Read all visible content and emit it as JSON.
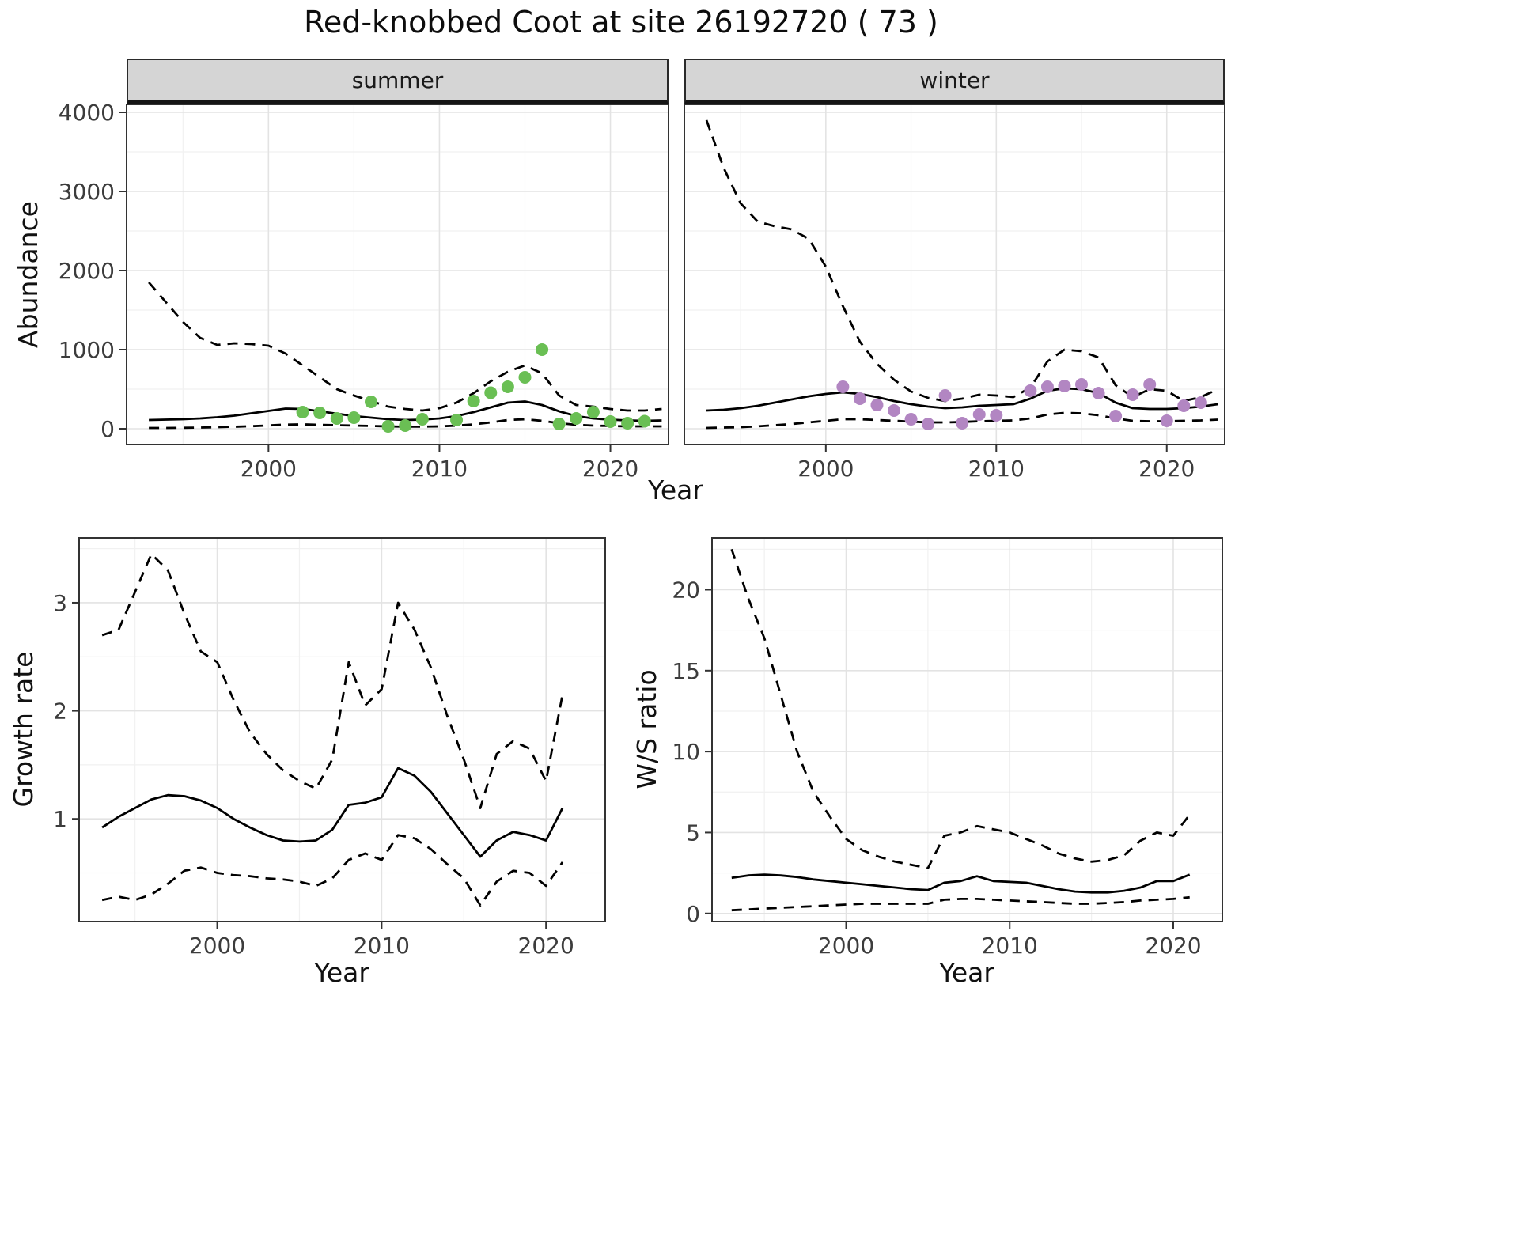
{
  "title": "Red-knobbed Coot at site 26192720 ( 73 )",
  "labels": {
    "abundance_axis": "Abundance",
    "year_axis_top": "Year",
    "growth_axis": "Growth rate",
    "ratio_axis": "W/S ratio",
    "year_axis_growth": "Year",
    "year_axis_ratio": "Year"
  },
  "theme": {
    "line_color": "#000000",
    "panel_border": "#333333",
    "grid_major": "#e3e3e3",
    "grid_minor": "#f1f1f1",
    "tick_color": "#333333",
    "tick_label_color": "#3c3c3c",
    "strip_background": "#d5d5d5",
    "summer_point_color": "#6abf54",
    "winter_point_color": "#b286c2"
  },
  "chart_data": [
    {
      "id": "abundance-summer",
      "type": "line",
      "facet": "summer",
      "xlabel": "Year",
      "ylabel": "Abundance",
      "xlim": [
        1991.7,
        2023.4
      ],
      "ylim": [
        -200,
        4100
      ],
      "xticks": [
        2000,
        2010,
        2020
      ],
      "yticks": [
        0,
        1000,
        2000,
        3000,
        4000
      ],
      "x": [
        1993,
        1994,
        1995,
        1996,
        1997,
        1998,
        1999,
        2000,
        2001,
        2002,
        2003,
        2004,
        2005,
        2006,
        2007,
        2008,
        2009,
        2010,
        2011,
        2012,
        2013,
        2014,
        2015,
        2016,
        2017,
        2018,
        2019,
        2020,
        2021,
        2022,
        2023
      ],
      "series": [
        {
          "name": "upper-credible-interval",
          "style": "dashed",
          "y": [
            1850,
            1600,
            1350,
            1150,
            1060,
            1080,
            1070,
            1050,
            950,
            800,
            650,
            500,
            420,
            350,
            280,
            250,
            230,
            260,
            330,
            450,
            600,
            720,
            800,
            700,
            420,
            300,
            280,
            250,
            230,
            230,
            250
          ]
        },
        {
          "name": "modelled-estimate",
          "style": "solid",
          "y": [
            110,
            115,
            120,
            130,
            145,
            165,
            195,
            225,
            255,
            250,
            220,
            190,
            160,
            140,
            120,
            110,
            115,
            130,
            160,
            210,
            270,
            330,
            345,
            300,
            220,
            160,
            130,
            115,
            105,
            100,
            105
          ]
        },
        {
          "name": "lower-credible-interval",
          "style": "dashed",
          "y": [
            10,
            10,
            12,
            15,
            20,
            25,
            32,
            42,
            52,
            55,
            50,
            45,
            40,
            35,
            30,
            26,
            26,
            30,
            40,
            55,
            80,
            110,
            120,
            100,
            70,
            50,
            40,
            35,
            30,
            30,
            30
          ]
        },
        {
          "name": "observed-counts",
          "style": "points",
          "color": "#6abf54",
          "x": [
            2002,
            2003,
            2004,
            2005,
            2006,
            2007,
            2008,
            2009,
            2011,
            2012,
            2013,
            2014,
            2015,
            2016,
            2017,
            2018,
            2019,
            2020,
            2021,
            2022
          ],
          "y": [
            210,
            200,
            130,
            140,
            340,
            30,
            40,
            120,
            110,
            350,
            455,
            530,
            650,
            1000,
            60,
            130,
            210,
            90,
            70,
            95
          ]
        }
      ]
    },
    {
      "id": "abundance-winter",
      "type": "line",
      "facet": "winter",
      "xlabel": "Year",
      "ylabel": "Abundance",
      "xlim": [
        1991.7,
        2023.4
      ],
      "ylim": [
        -200,
        4100
      ],
      "xticks": [
        2000,
        2010,
        2020
      ],
      "yticks": [
        0,
        1000,
        2000,
        3000,
        4000
      ],
      "x": [
        1993,
        1994,
        1995,
        1996,
        1997,
        1998,
        1999,
        2000,
        2001,
        2002,
        2003,
        2004,
        2005,
        2006,
        2007,
        2008,
        2009,
        2010,
        2011,
        2012,
        2013,
        2014,
        2015,
        2016,
        2017,
        2018,
        2019,
        2020,
        2021,
        2022,
        2023
      ],
      "series": [
        {
          "name": "upper-credible-interval",
          "style": "dashed",
          "y": [
            3900,
            3300,
            2850,
            2620,
            2560,
            2520,
            2400,
            2050,
            1550,
            1100,
            820,
            620,
            470,
            390,
            350,
            380,
            430,
            420,
            400,
            520,
            850,
            1000,
            980,
            900,
            550,
            400,
            500,
            480,
            350,
            400,
            500
          ]
        },
        {
          "name": "modelled-estimate",
          "style": "solid",
          "y": [
            230,
            240,
            260,
            290,
            330,
            370,
            410,
            440,
            460,
            440,
            400,
            350,
            310,
            280,
            260,
            270,
            290,
            300,
            310,
            380,
            480,
            510,
            500,
            450,
            330,
            260,
            250,
            250,
            260,
            280,
            310
          ]
        },
        {
          "name": "lower-credible-interval",
          "style": "dashed",
          "y": [
            10,
            15,
            20,
            30,
            45,
            60,
            80,
            100,
            120,
            120,
            110,
            100,
            90,
            80,
            80,
            85,
            95,
            100,
            105,
            130,
            180,
            200,
            195,
            170,
            130,
            100,
            95,
            95,
            100,
            105,
            115
          ]
        },
        {
          "name": "observed-counts",
          "style": "points",
          "color": "#b286c2",
          "x": [
            2001,
            2002,
            2003,
            2004,
            2005,
            2006,
            2007,
            2008,
            2009,
            2010,
            2012,
            2013,
            2014,
            2015,
            2016,
            2017,
            2018,
            2019,
            2020,
            2021,
            2022
          ],
          "y": [
            530,
            380,
            300,
            230,
            120,
            60,
            420,
            70,
            180,
            170,
            480,
            530,
            540,
            560,
            450,
            160,
            430,
            560,
            100,
            290,
            330
          ]
        }
      ]
    },
    {
      "id": "growth-rate",
      "type": "line",
      "facet": "",
      "xlabel": "Year",
      "ylabel": "Growth rate",
      "xlim": [
        1991.6,
        2023.6
      ],
      "ylim": [
        0.05,
        3.6
      ],
      "xticks": [
        2000,
        2010,
        2020
      ],
      "yticks": [
        1,
        2,
        3
      ],
      "x": [
        1993,
        1994,
        1995,
        1996,
        1997,
        1998,
        1999,
        2000,
        2001,
        2002,
        2003,
        2004,
        2005,
        2006,
        2007,
        2008,
        2009,
        2010,
        2011,
        2012,
        2013,
        2014,
        2015,
        2016,
        2017,
        2018,
        2019,
        2020,
        2021
      ],
      "series": [
        {
          "name": "upper-credible-interval",
          "style": "dashed",
          "y": [
            2.7,
            2.75,
            3.1,
            3.45,
            3.3,
            2.9,
            2.55,
            2.45,
            2.1,
            1.8,
            1.6,
            1.45,
            1.35,
            1.28,
            1.55,
            2.45,
            2.05,
            2.2,
            3.0,
            2.75,
            2.4,
            1.95,
            1.55,
            1.1,
            1.6,
            1.72,
            1.65,
            1.35,
            2.15
          ]
        },
        {
          "name": "modelled-estimate",
          "style": "solid",
          "y": [
            0.92,
            1.02,
            1.1,
            1.18,
            1.22,
            1.21,
            1.17,
            1.1,
            1.0,
            0.92,
            0.85,
            0.8,
            0.79,
            0.8,
            0.9,
            1.13,
            1.15,
            1.2,
            1.47,
            1.4,
            1.25,
            1.05,
            0.85,
            0.65,
            0.8,
            0.88,
            0.85,
            0.8,
            1.1
          ]
        },
        {
          "name": "lower-credible-interval",
          "style": "dashed",
          "y": [
            0.25,
            0.28,
            0.25,
            0.3,
            0.4,
            0.52,
            0.55,
            0.5,
            0.48,
            0.47,
            0.45,
            0.44,
            0.42,
            0.38,
            0.45,
            0.62,
            0.68,
            0.62,
            0.85,
            0.82,
            0.72,
            0.58,
            0.45,
            0.2,
            0.42,
            0.52,
            0.5,
            0.38,
            0.6
          ]
        }
      ]
    },
    {
      "id": "winter-summer-ratio",
      "type": "line",
      "facet": "",
      "xlabel": "Year",
      "ylabel": "W/S ratio",
      "xlim": [
        1991.8,
        2023.0
      ],
      "ylim": [
        -0.5,
        23.2
      ],
      "xticks": [
        2000,
        2010,
        2020
      ],
      "yticks": [
        0,
        5,
        10,
        15,
        20
      ],
      "x": [
        1993,
        1994,
        1995,
        1996,
        1997,
        1998,
        1999,
        2000,
        2001,
        2002,
        2003,
        2004,
        2005,
        2006,
        2007,
        2008,
        2009,
        2010,
        2011,
        2012,
        2013,
        2014,
        2015,
        2016,
        2017,
        2018,
        2019,
        2020,
        2021
      ],
      "series": [
        {
          "name": "upper-credible-interval",
          "style": "dashed",
          "y": [
            22.5,
            19.5,
            17.0,
            13.5,
            10.0,
            7.5,
            6.0,
            4.6,
            3.9,
            3.5,
            3.2,
            3.0,
            2.8,
            4.8,
            5.0,
            5.4,
            5.2,
            5.0,
            4.6,
            4.2,
            3.7,
            3.4,
            3.2,
            3.3,
            3.6,
            4.5,
            5.0,
            4.8,
            6.1
          ]
        },
        {
          "name": "modelled-estimate",
          "style": "solid",
          "y": [
            2.2,
            2.35,
            2.4,
            2.35,
            2.25,
            2.1,
            2.0,
            1.9,
            1.8,
            1.7,
            1.6,
            1.5,
            1.45,
            1.9,
            2.0,
            2.3,
            2.0,
            1.95,
            1.9,
            1.7,
            1.5,
            1.35,
            1.3,
            1.3,
            1.4,
            1.6,
            2.0,
            2.0,
            2.4
          ]
        },
        {
          "name": "lower-credible-interval",
          "style": "dashed",
          "y": [
            0.2,
            0.25,
            0.3,
            0.35,
            0.4,
            0.45,
            0.5,
            0.55,
            0.6,
            0.6,
            0.6,
            0.6,
            0.6,
            0.85,
            0.9,
            0.9,
            0.85,
            0.8,
            0.75,
            0.7,
            0.65,
            0.6,
            0.6,
            0.65,
            0.7,
            0.8,
            0.85,
            0.9,
            1.0
          ]
        }
      ]
    }
  ]
}
